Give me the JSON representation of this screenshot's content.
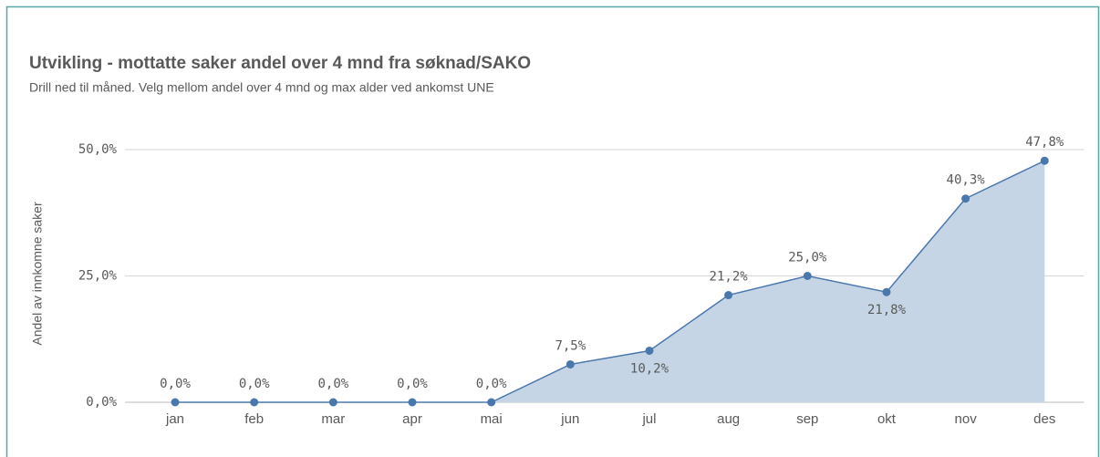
{
  "chart_data": {
    "type": "area",
    "title": "Utvikling - mottatte saker andel over 4 mnd fra søknad/SAKO",
    "subtitle": "Drill ned til måned. Velg mellom andel over 4 mnd og max alder ved ankomst UNE",
    "y_label": "Andel av innkomne saker",
    "categories": [
      "jan",
      "feb",
      "mar",
      "apr",
      "mai",
      "jun",
      "jul",
      "aug",
      "sep",
      "okt",
      "nov",
      "des"
    ],
    "values": [
      0,
      0,
      0,
      0,
      0,
      7.5,
      10.2,
      21.2,
      25.0,
      21.8,
      40.3,
      47.8
    ],
    "value_labels": [
      "0,0%",
      "0,0%",
      "0,0%",
      "0,0%",
      "0,0%",
      "7,5%",
      "10,2%",
      "21,2%",
      "25,0%",
      "21,8%",
      "40,3%",
      "47,8%"
    ],
    "color": "#4a78ad",
    "fill": "#c6d5e5",
    "ylim": [
      0,
      50
    ],
    "yticks": [
      {
        "value": 0,
        "label": "0,0%"
      },
      {
        "value": 25,
        "label": "25,0%"
      },
      {
        "value": 50,
        "label": "50,0%"
      }
    ],
    "grid": true
  }
}
